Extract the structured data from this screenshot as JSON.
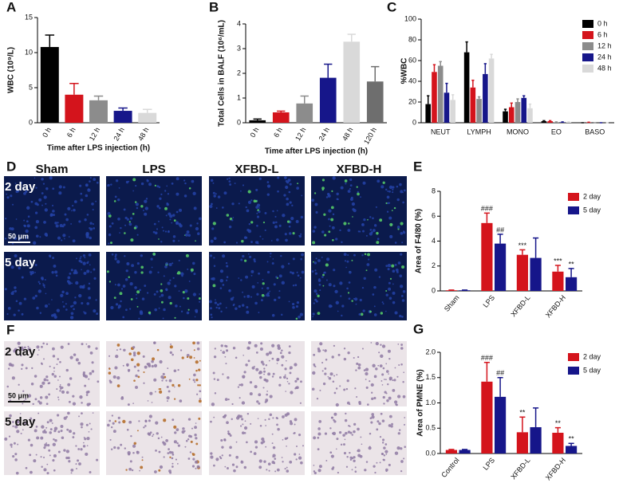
{
  "chart_data": [
    {
      "type": "bar",
      "panel": "A",
      "y_label": "WBC (10⁹/L)",
      "x_label": "Time after LPS injection (h)",
      "categories": [
        "0 h",
        "6 h",
        "12 h",
        "24 h",
        "48 h"
      ],
      "values": [
        10.8,
        4.0,
        3.2,
        1.7,
        1.4
      ],
      "errors": [
        1.7,
        1.6,
        0.6,
        0.4,
        0.5
      ],
      "colors": [
        "#000000",
        "#d4141c",
        "#8c8c8c",
        "#16168a",
        "#d9d9d9"
      ],
      "ylim": [
        0,
        15
      ],
      "yticks": [
        0,
        5,
        10,
        15
      ]
    },
    {
      "type": "bar",
      "panel": "B",
      "y_label": "Total Cells in BALF (10⁶/mL)",
      "x_label": "Time after LPS injection (h)",
      "categories": [
        "0 h",
        "6 h",
        "12 h",
        "24 h",
        "48 h",
        "120 h"
      ],
      "values": [
        0.1,
        0.42,
        0.78,
        1.82,
        3.28,
        1.67
      ],
      "errors": [
        0.05,
        0.05,
        0.3,
        0.55,
        0.3,
        0.6
      ],
      "colors": [
        "#000000",
        "#d4141c",
        "#8c8c8c",
        "#16168a",
        "#d9d9d9",
        "#6e6e6e"
      ],
      "ylim": [
        0,
        4
      ],
      "yticks": [
        0,
        1,
        2,
        3,
        4
      ]
    },
    {
      "type": "bar",
      "panel": "C",
      "y_label": "%WBC",
      "categories": [
        "NEUT",
        "LYMPH",
        "MONO",
        "EO",
        "BASO"
      ],
      "series": [
        {
          "name": "0 h",
          "color": "#000000",
          "values": [
            18,
            68,
            11,
            1.5,
            0
          ],
          "errors": [
            8,
            10,
            2,
            0.5,
            0
          ]
        },
        {
          "name": "6 h",
          "color": "#d4141c",
          "values": [
            49,
            34,
            15,
            1.5,
            0.3
          ],
          "errors": [
            7,
            7,
            4,
            0.5,
            0.2
          ]
        },
        {
          "name": "12 h",
          "color": "#8c8c8c",
          "values": [
            55,
            23,
            20,
            0.5,
            0
          ],
          "errors": [
            4,
            2,
            3,
            0.3,
            0
          ]
        },
        {
          "name": "24 h",
          "color": "#16168a",
          "values": [
            29,
            47,
            24,
            0.5,
            0
          ],
          "errors": [
            9,
            10,
            2,
            0.3,
            0
          ]
        },
        {
          "name": "48 h",
          "color": "#d9d9d9",
          "values": [
            22,
            62,
            14,
            0.5,
            0
          ],
          "errors": [
            5,
            4,
            4,
            0.3,
            0
          ]
        }
      ],
      "ylim": [
        0,
        100
      ],
      "yticks": [
        0,
        20,
        40,
        60,
        80,
        100
      ],
      "legend": "upper right"
    },
    {
      "type": "bar",
      "panel": "E",
      "y_label": "Area of F4/80 (%)",
      "categories": [
        "Sham",
        "LPS",
        "XFBD-L",
        "XFBD-H"
      ],
      "series": [
        {
          "name": "2 day",
          "color": "#d4141c",
          "values": [
            0.05,
            5.45,
            2.9,
            1.55
          ],
          "errors": [
            0.02,
            0.8,
            0.4,
            0.5
          ],
          "annotations": [
            null,
            "###",
            "***",
            "***"
          ]
        },
        {
          "name": "5 day",
          "color": "#16168a",
          "values": [
            0.05,
            3.8,
            2.65,
            1.1
          ],
          "errors": [
            0.02,
            0.75,
            1.6,
            0.7
          ],
          "annotations": [
            null,
            "##",
            null,
            "**"
          ]
        }
      ],
      "ylim": [
        0,
        8
      ],
      "yticks": [
        0,
        2,
        4,
        6,
        8
      ],
      "legend": "upper right"
    },
    {
      "type": "bar",
      "panel": "G",
      "y_label": "Area of PMNE (%)",
      "categories": [
        "Control",
        "LPS",
        "XFBD-L",
        "XFBD-H"
      ],
      "series": [
        {
          "name": "2 day",
          "color": "#d4141c",
          "values": [
            0.07,
            1.42,
            0.42,
            0.41
          ],
          "errors": [
            0.01,
            0.38,
            0.3,
            0.1
          ],
          "annotations": [
            null,
            "###",
            "**",
            "**"
          ]
        },
        {
          "name": "5 day",
          "color": "#16168a",
          "values": [
            0.07,
            1.12,
            0.52,
            0.15
          ],
          "errors": [
            0.01,
            0.38,
            0.38,
            0.05
          ],
          "annotations": [
            null,
            "##",
            null,
            "**"
          ]
        }
      ],
      "ylim": [
        0,
        2
      ],
      "yticks": [
        {
          "value": 0,
          "label": "0.0"
        },
        0.5,
        {
          "value": 1,
          "label": "1.0"
        },
        1.5,
        {
          "value": 2,
          "label": "2.0"
        }
      ],
      "legend": "upper right"
    }
  ],
  "image_panels": [
    {
      "panel": "D",
      "columns": [
        "Sham",
        "LPS",
        "XFBD-L",
        "XFBD-H"
      ],
      "rows": [
        "2 day",
        "5 day"
      ],
      "scale_bar": "50 μm"
    },
    {
      "panel": "F",
      "rows": [
        "2 day",
        "5 day"
      ],
      "scale_bar": "50 μm"
    }
  ]
}
